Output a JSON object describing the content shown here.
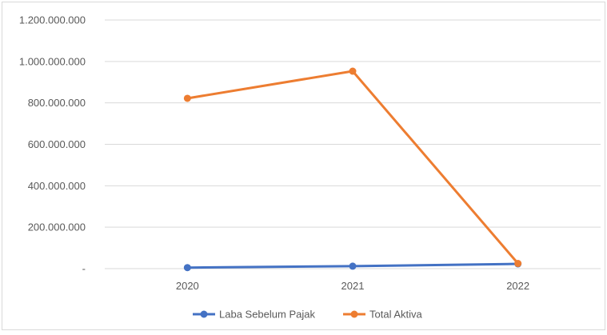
{
  "chart_data": {
    "type": "line",
    "title": "",
    "xlabel": "",
    "ylabel": "",
    "categories": [
      "2020",
      "2021",
      "2022"
    ],
    "series": [
      {
        "name": "Laba Sebelum Pajak",
        "color": "#4472c4",
        "values": [
          5000000,
          12000000,
          23000000
        ]
      },
      {
        "name": "Total Aktiva",
        "color": "#ed7d31",
        "values": [
          822000000,
          953000000,
          25000000
        ]
      }
    ],
    "ylim": [
      0,
      1200000000
    ],
    "y_ticks": [
      {
        "value": 0,
        "label": "-"
      },
      {
        "value": 200000000,
        "label": "200.000.000"
      },
      {
        "value": 400000000,
        "label": "400.000.000"
      },
      {
        "value": 600000000,
        "label": "600.000.000"
      },
      {
        "value": 800000000,
        "label": "800.000.000"
      },
      {
        "value": 1000000000,
        "label": "1.000.000.000"
      },
      {
        "value": 1200000000,
        "label": "1.200.000.000"
      }
    ],
    "grid": true,
    "legend": "bottom"
  }
}
